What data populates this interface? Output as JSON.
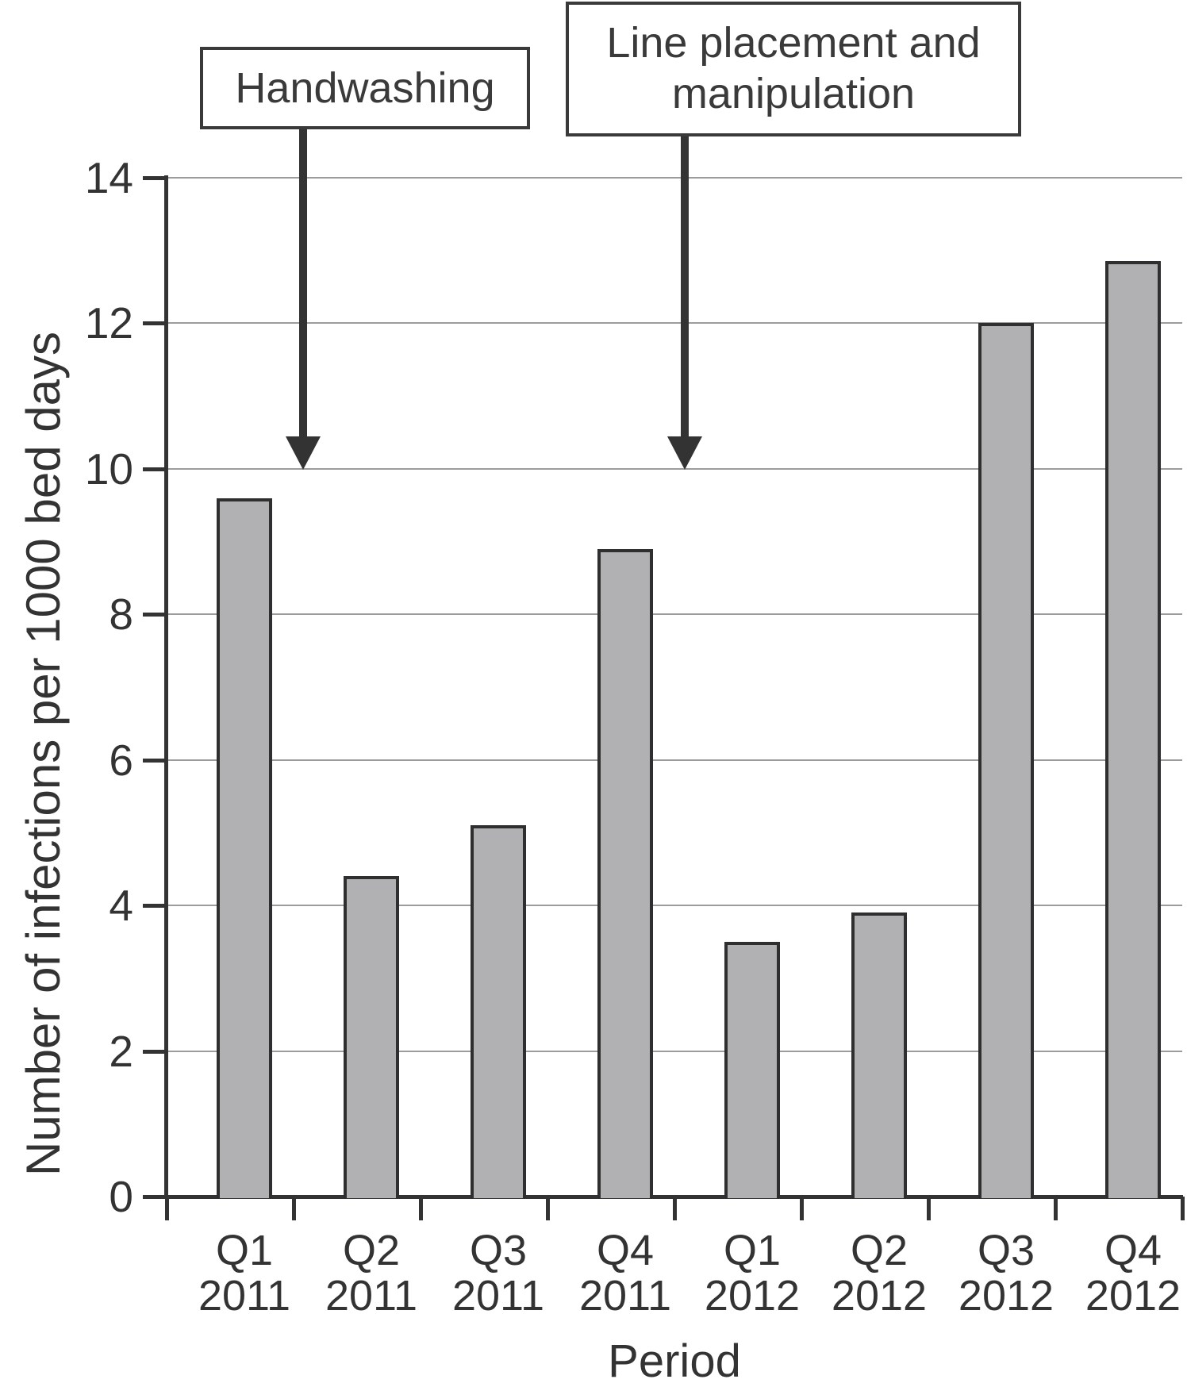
{
  "figure": {
    "type_note": "static statistical figure, no interactive controls"
  },
  "chart_data": {
    "type": "bar",
    "title": "",
    "xlabel": "Period",
    "ylabel": "Number of infections per 1000 bed days",
    "categories": [
      "Q1 2011",
      "Q2 2011",
      "Q3 2011",
      "Q4 2011",
      "Q1 2012",
      "Q2 2012",
      "Q3 2012",
      "Q4 2012"
    ],
    "values": [
      9.6,
      4.4,
      5.1,
      8.9,
      3.5,
      3.9,
      12.0,
      12.85
    ],
    "ylim": [
      0,
      14
    ],
    "yticks": [
      0,
      2,
      4,
      6,
      8,
      10,
      12,
      14
    ],
    "grid": true,
    "legend": "none",
    "bar_fill_color": "#b1b1b4",
    "bar_border_color": "#2f2f2f",
    "gridline_color": "#9c9c9c",
    "axis_color": "#333333",
    "annotations": [
      {
        "label": "Handwashing",
        "points_to_x": "boundary between Q1 2011 and Q2 2011",
        "arrow_tip_value": 10
      },
      {
        "label": "Line placement and manipulation",
        "points_to_x": "boundary between Q4 2011 and Q1 2012",
        "arrow_tip_value": 10
      }
    ]
  }
}
